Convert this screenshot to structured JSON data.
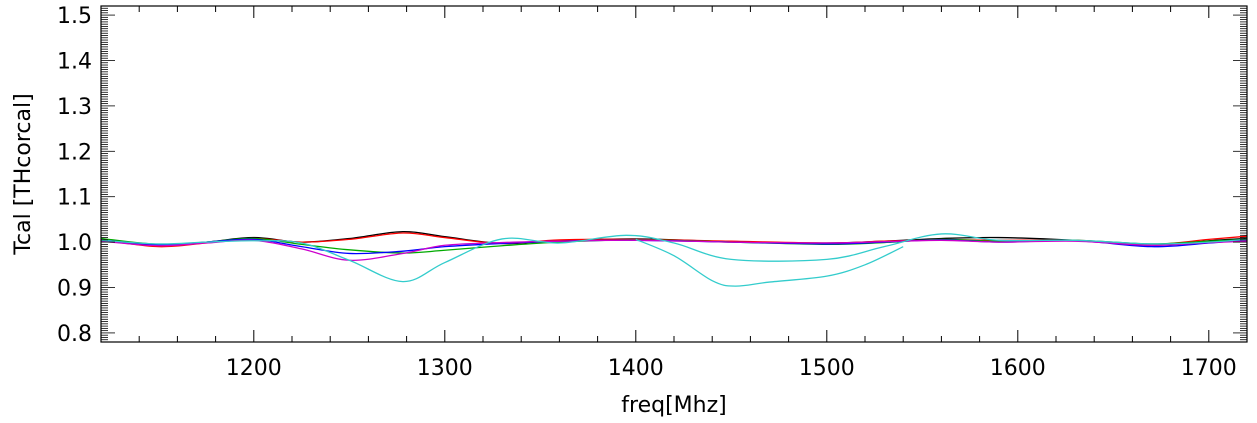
{
  "chart_data": {
    "type": "line",
    "title": "",
    "xlabel": "freq[Mhz]",
    "ylabel": "Tcal  [THcorcal]",
    "xlim": [
      1120,
      1720
    ],
    "ylim": [
      0.78,
      1.52
    ],
    "xticks": [
      1200,
      1300,
      1400,
      1500,
      1600,
      1700
    ],
    "yticks": [
      0.8,
      0.9,
      1.0,
      1.1,
      1.2,
      1.3,
      1.4,
      1.5
    ],
    "ytick_labels": [
      "0.8",
      "0.9",
      "1.0",
      "1.1",
      "1.2",
      "1.3",
      "1.4",
      "1.5"
    ],
    "xtick_labels": [
      "1200",
      "1300",
      "1400",
      "1500",
      "1600",
      "1700"
    ],
    "grid": false,
    "series": [
      {
        "color": "#000000",
        "x": [
          1120,
          1150,
          1175,
          1200,
          1225,
          1250,
          1278,
          1300,
          1330,
          1360,
          1400,
          1450,
          1500,
          1530,
          1560,
          1590,
          1630,
          1670,
          1700,
          1720
        ],
        "y": [
          1.003,
          0.993,
          1.0,
          1.01,
          1.0,
          1.008,
          1.023,
          1.012,
          0.997,
          1.003,
          1.007,
          1.001,
          0.998,
          1.002,
          1.008,
          1.01,
          1.004,
          0.993,
          1.003,
          1.008
        ]
      },
      {
        "color": "#ff0000",
        "x": [
          1120,
          1150,
          1175,
          1200,
          1225,
          1250,
          1278,
          1300,
          1330,
          1360,
          1400,
          1450,
          1500,
          1530,
          1560,
          1590,
          1630,
          1670,
          1700,
          1720
        ],
        "y": [
          1.005,
          0.99,
          0.998,
          1.008,
          1.0,
          1.006,
          1.02,
          1.01,
          0.997,
          1.005,
          1.006,
          1.002,
          0.998,
          1.002,
          1.005,
          1.004,
          1.004,
          0.995,
          1.006,
          1.013
        ]
      },
      {
        "color": "#00aa00",
        "x": [
          1120,
          1150,
          1175,
          1200,
          1225,
          1250,
          1278,
          1300,
          1330,
          1360,
          1400,
          1450,
          1500,
          1530,
          1560,
          1590,
          1630,
          1670,
          1700,
          1720
        ],
        "y": [
          1.008,
          0.995,
          1.0,
          1.008,
          0.995,
          0.983,
          0.976,
          0.982,
          0.992,
          1.0,
          1.005,
          1.0,
          0.995,
          0.999,
          1.006,
          1.002,
          1.004,
          0.996,
          1.002,
          1.006
        ]
      },
      {
        "color": "#0000ff",
        "x": [
          1120,
          1150,
          1175,
          1200,
          1225,
          1250,
          1278,
          1300,
          1330,
          1360,
          1400,
          1450,
          1500,
          1530,
          1560,
          1590,
          1630,
          1670,
          1700,
          1720
        ],
        "y": [
          1.005,
          0.994,
          1.0,
          1.006,
          0.99,
          0.975,
          0.98,
          0.99,
          0.997,
          1.002,
          1.004,
          1.0,
          0.996,
          1.0,
          1.005,
          1.0,
          1.003,
          0.99,
          0.998,
          1.005
        ]
      },
      {
        "color": "#cc00cc",
        "x": [
          1120,
          1150,
          1175,
          1200,
          1225,
          1250,
          1278,
          1300,
          1330,
          1360,
          1400,
          1450,
          1500,
          1530,
          1560,
          1590,
          1630,
          1670,
          1700,
          1720
        ],
        "y": [
          1.002,
          0.992,
          0.998,
          1.004,
          0.985,
          0.96,
          0.975,
          0.993,
          0.999,
          1.002,
          1.004,
          1.0,
          0.998,
          1.001,
          1.004,
          1.0,
          1.002,
          0.993,
          0.999,
          1.002
        ]
      },
      {
        "color": "#33cccc",
        "x": [
          1120,
          1150,
          1175,
          1200,
          1225,
          1250,
          1278,
          1300,
          1330,
          1360,
          1395,
          1420,
          1450,
          1500,
          1530,
          1560,
          1590,
          1630,
          1670,
          1700,
          1720
        ],
        "y": [
          1.004,
          0.996,
          1.0,
          1.003,
          0.998,
          0.96,
          0.913,
          0.955,
          1.007,
          0.998,
          1.015,
          0.998,
          0.962,
          0.962,
          0.99,
          1.018,
          1.004,
          1.004,
          0.996,
          1.0,
          1.006
        ]
      },
      {
        "color": "#33cccc",
        "x": [
          1400,
          1420,
          1440,
          1452,
          1470,
          1500,
          1520,
          1540
        ],
        "y": [
          1.006,
          0.97,
          0.915,
          0.903,
          0.912,
          0.925,
          0.95,
          0.99
        ]
      }
    ]
  }
}
